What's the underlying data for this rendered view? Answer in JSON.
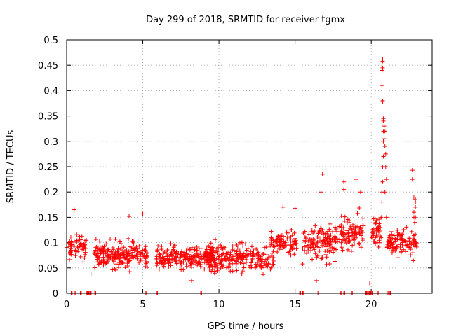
{
  "chart_data": {
    "type": "scatter",
    "title": "Day 299 of 2018, SRMTID for receiver tgmx",
    "xlabel": "GPS time / hours",
    "ylabel": "SRMTID / TECUs",
    "xlim": [
      0,
      24
    ],
    "ylim": [
      0,
      0.5
    ],
    "x_ticks": [
      0,
      5,
      10,
      15,
      20
    ],
    "x_tick_labels": [
      "0",
      "5",
      "10",
      "15",
      "20"
    ],
    "y_ticks": [
      0,
      0.05,
      0.1,
      0.15,
      0.2,
      0.25,
      0.3,
      0.35,
      0.4,
      0.45,
      0.5
    ],
    "y_tick_labels": [
      "0",
      "0.05",
      "0.1",
      "0.15",
      "0.2",
      "0.25",
      "0.3",
      "0.35",
      "0.4",
      "0.45",
      "0.5"
    ],
    "grid": true,
    "marker": "plus",
    "color": "#ff0000",
    "series": [
      {
        "name": "SRMTID",
        "segments": [
          {
            "x_start": 0.0,
            "x_end": 1.3,
            "mean": 0.09,
            "spread": 0.035,
            "n": 60
          },
          {
            "x_start": 1.8,
            "x_end": 5.3,
            "mean": 0.075,
            "spread": 0.035,
            "n": 230
          },
          {
            "x_start": 5.9,
            "x_end": 9.8,
            "mean": 0.07,
            "spread": 0.03,
            "n": 230
          },
          {
            "x_start": 9.0,
            "x_end": 13.6,
            "mean": 0.07,
            "spread": 0.035,
            "n": 240
          },
          {
            "x_start": 13.4,
            "x_end": 15.1,
            "mean": 0.1,
            "spread": 0.035,
            "n": 80
          },
          {
            "x_start": 15.5,
            "x_end": 17.8,
            "mean": 0.1,
            "spread": 0.045,
            "n": 130
          },
          {
            "x_start": 17.9,
            "x_end": 19.5,
            "mean": 0.12,
            "spread": 0.045,
            "n": 90
          },
          {
            "x_start": 20.0,
            "x_end": 20.6,
            "mean": 0.12,
            "spread": 0.04,
            "n": 40
          },
          {
            "x_start": 21.0,
            "x_end": 23.0,
            "mean": 0.1,
            "spread": 0.035,
            "n": 110
          }
        ],
        "points": [
          [
            0.5,
            0.165
          ],
          [
            1.6,
            0.038
          ],
          [
            4.1,
            0.152
          ],
          [
            5.0,
            0.157
          ],
          [
            8.2,
            0.025
          ],
          [
            14.2,
            0.17
          ],
          [
            15.0,
            0.168
          ],
          [
            16.4,
            0.025
          ],
          [
            16.8,
            0.235
          ],
          [
            16.7,
            0.2
          ],
          [
            18.2,
            0.22
          ],
          [
            18.2,
            0.205
          ],
          [
            19.0,
            0.225
          ],
          [
            19.3,
            0.2
          ],
          [
            19.9,
            0.02
          ],
          [
            20.4,
            0.1
          ],
          [
            20.65,
            0.15
          ],
          [
            20.7,
            0.18
          ],
          [
            20.7,
            0.2
          ],
          [
            20.75,
            0.22
          ],
          [
            20.75,
            0.25
          ],
          [
            20.8,
            0.27
          ],
          [
            20.8,
            0.3
          ],
          [
            20.8,
            0.32
          ],
          [
            20.8,
            0.34
          ],
          [
            20.8,
            0.345
          ],
          [
            20.75,
            0.378
          ],
          [
            20.75,
            0.38
          ],
          [
            20.7,
            0.41
          ],
          [
            20.72,
            0.44
          ],
          [
            20.75,
            0.445
          ],
          [
            20.75,
            0.458
          ],
          [
            20.75,
            0.462
          ],
          [
            20.85,
            0.33
          ],
          [
            20.85,
            0.305
          ],
          [
            20.9,
            0.32
          ],
          [
            20.9,
            0.29
          ],
          [
            20.95,
            0.275
          ],
          [
            20.95,
            0.25
          ],
          [
            21.0,
            0.225
          ],
          [
            20.9,
            0.2
          ],
          [
            21.0,
            0.15
          ],
          [
            20.6,
            0.13
          ],
          [
            20.65,
            0.11
          ],
          [
            22.7,
            0.243
          ],
          [
            22.7,
            0.225
          ],
          [
            22.8,
            0.19
          ],
          [
            22.9,
            0.185
          ],
          [
            22.9,
            0.18
          ],
          [
            22.9,
            0.17
          ],
          [
            22.8,
            0.16
          ],
          [
            22.9,
            0.15
          ],
          [
            22.8,
            0.15
          ],
          [
            22.85,
            0.14
          ]
        ],
        "zero_values": [
          0.3,
          0.55,
          0.9,
          1.3,
          1.45,
          1.55,
          1.85,
          5.2,
          5.9,
          8.8,
          15.3,
          15.5,
          16.5,
          18.0,
          18.2,
          18.7,
          19.6,
          19.7,
          19.8,
          19.9,
          20.0,
          20.4,
          21.1,
          21.2
        ]
      }
    ]
  }
}
